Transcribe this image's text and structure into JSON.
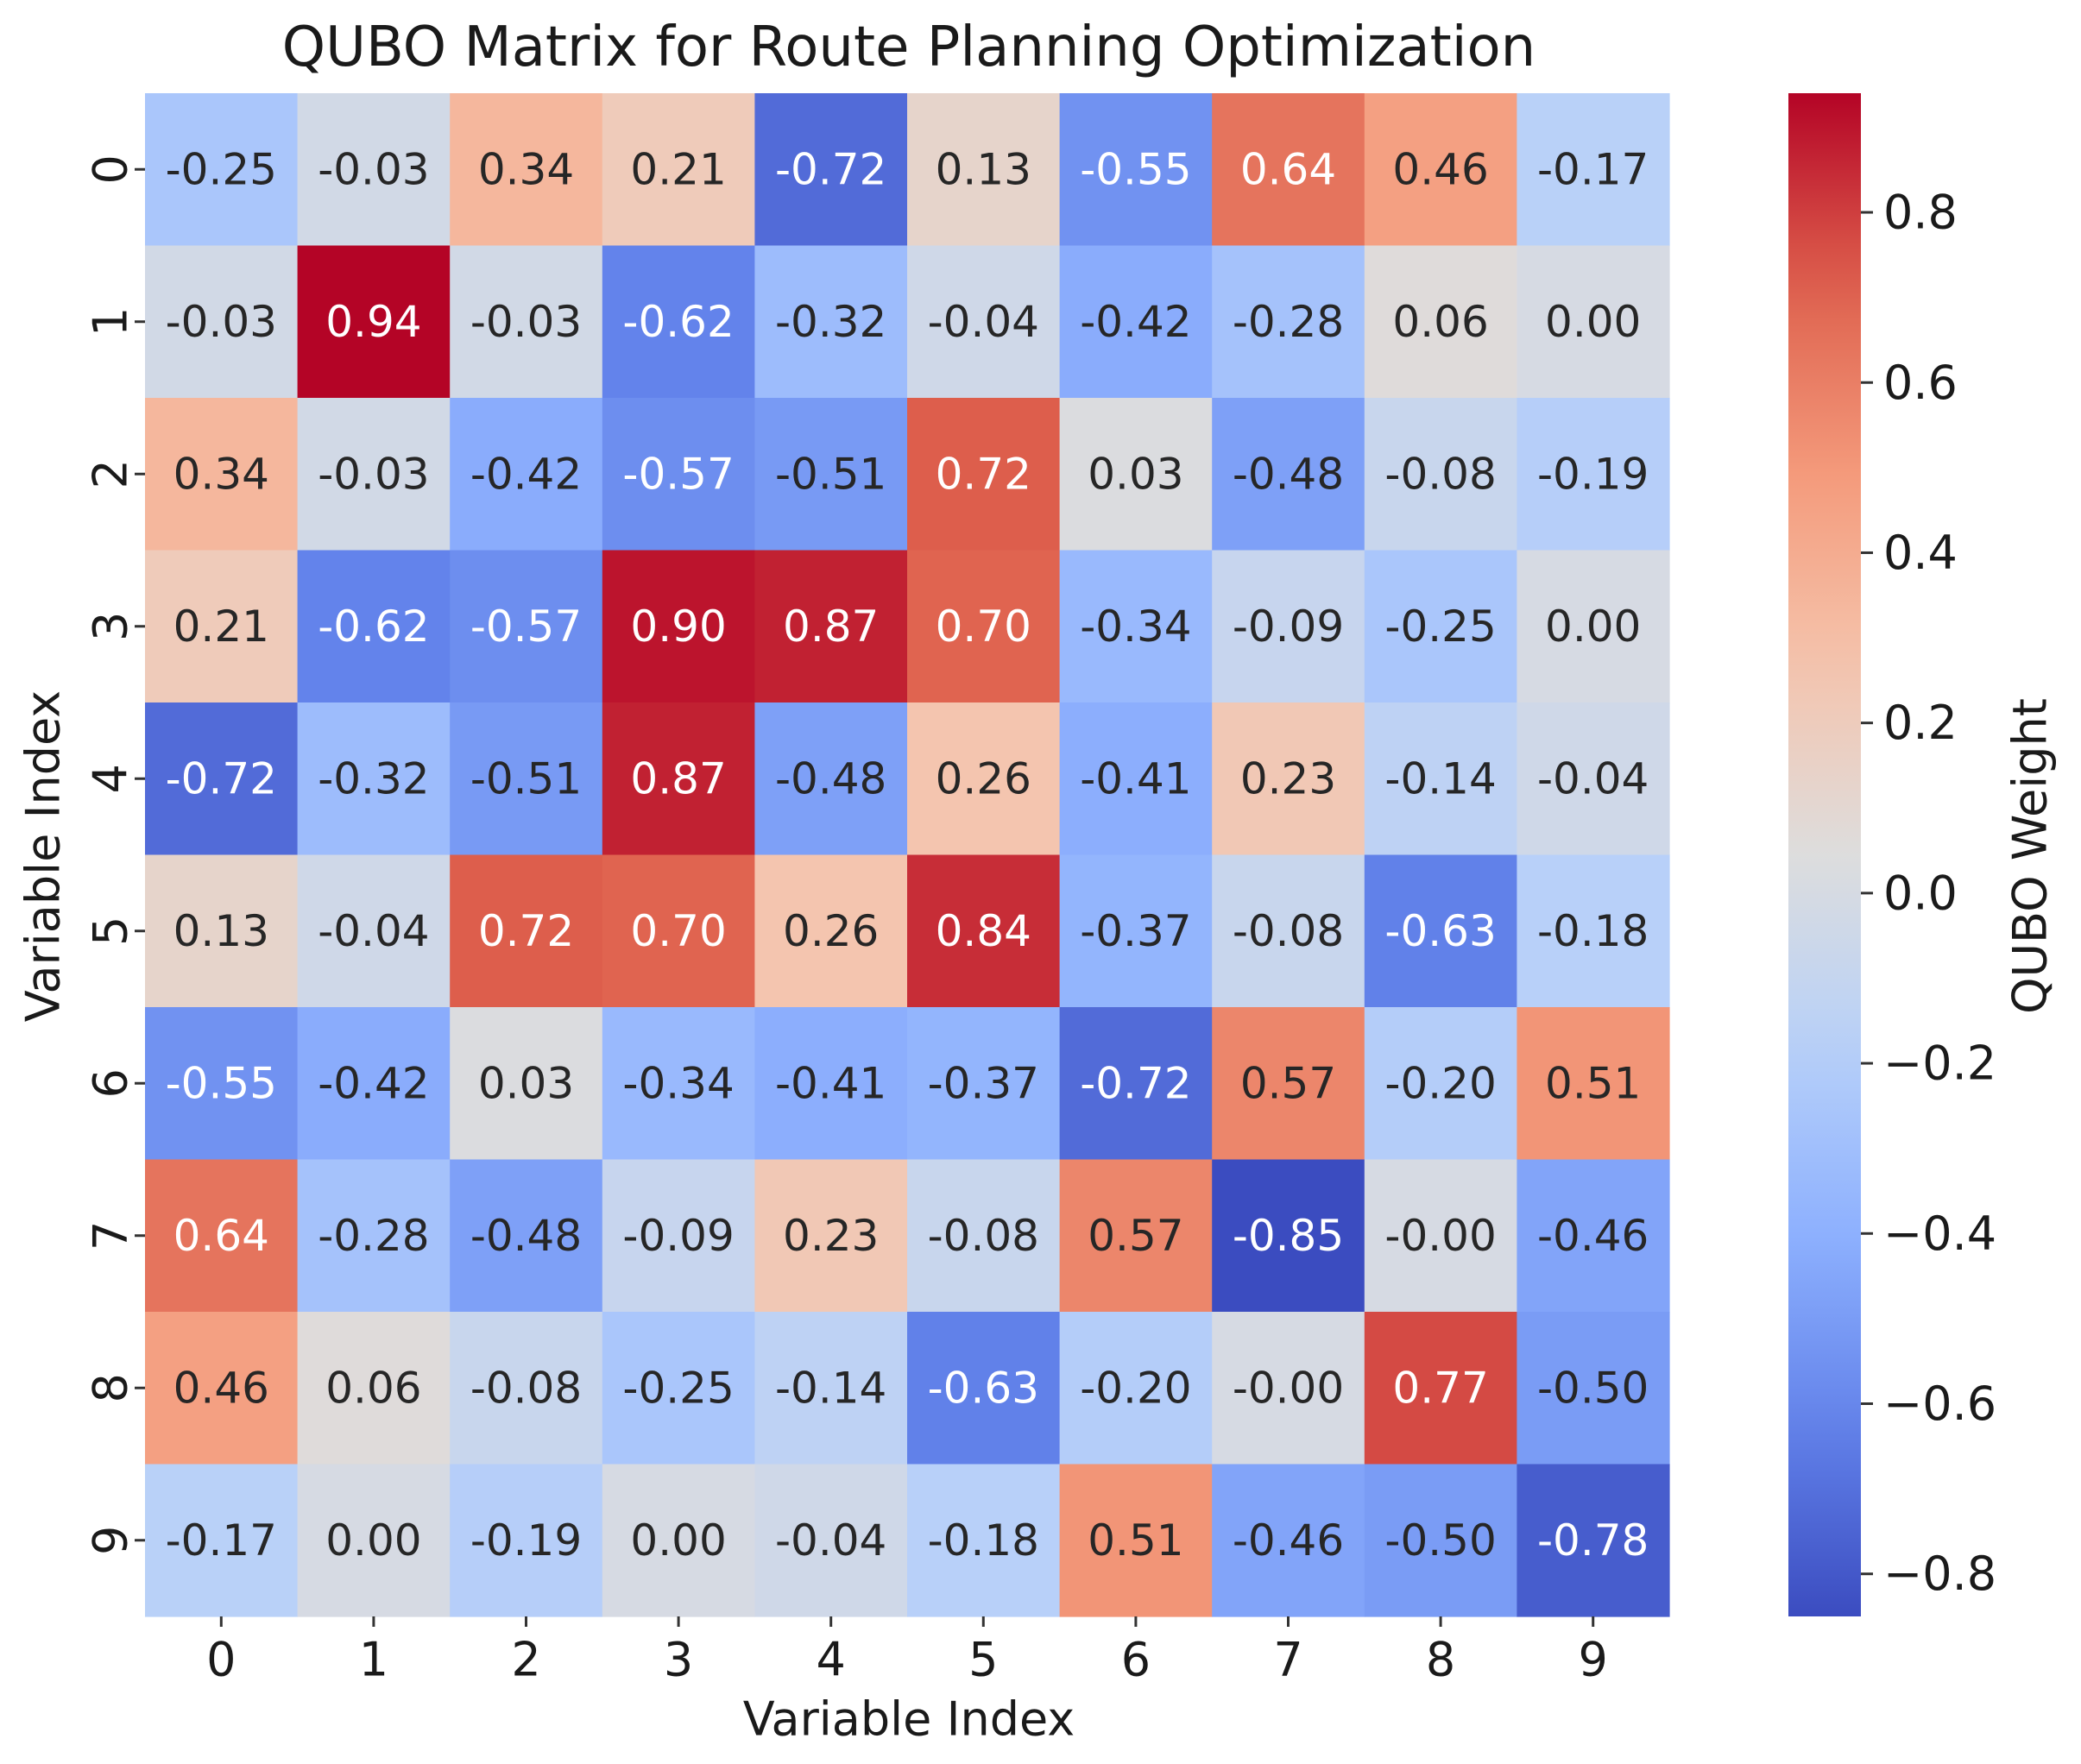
{
  "chart_data": {
    "type": "heatmap",
    "title": "QUBO Matrix for Route Planning Optimization",
    "xlabel": "Variable Index",
    "ylabel": "Variable Index",
    "x_categories": [
      "0",
      "1",
      "2",
      "3",
      "4",
      "5",
      "6",
      "7",
      "8",
      "9"
    ],
    "y_categories": [
      "0",
      "1",
      "2",
      "3",
      "4",
      "5",
      "6",
      "7",
      "8",
      "9"
    ],
    "values": [
      [
        -0.25,
        -0.03,
        0.34,
        0.21,
        -0.72,
        0.13,
        -0.55,
        0.64,
        0.46,
        -0.17
      ],
      [
        -0.03,
        0.94,
        -0.03,
        -0.62,
        -0.32,
        -0.04,
        -0.42,
        -0.28,
        0.06,
        0.0
      ],
      [
        0.34,
        -0.03,
        -0.42,
        -0.57,
        -0.51,
        0.72,
        0.03,
        -0.48,
        -0.08,
        -0.19
      ],
      [
        0.21,
        -0.62,
        -0.57,
        0.9,
        0.87,
        0.7,
        -0.34,
        -0.09,
        -0.25,
        0.0
      ],
      [
        -0.72,
        -0.32,
        -0.51,
        0.87,
        -0.48,
        0.26,
        -0.41,
        0.23,
        -0.14,
        -0.04
      ],
      [
        0.13,
        -0.04,
        0.72,
        0.7,
        0.26,
        0.84,
        -0.37,
        -0.08,
        -0.63,
        -0.18
      ],
      [
        -0.55,
        -0.42,
        0.03,
        -0.34,
        -0.41,
        -0.37,
        -0.72,
        0.57,
        -0.2,
        0.51
      ],
      [
        0.64,
        -0.28,
        -0.48,
        -0.09,
        0.23,
        -0.08,
        0.57,
        -0.85,
        -0.0,
        -0.46
      ],
      [
        0.46,
        0.06,
        -0.08,
        -0.25,
        -0.14,
        -0.63,
        -0.2,
        -0.0,
        0.77,
        -0.5
      ],
      [
        -0.17,
        0.0,
        -0.19,
        0.0,
        -0.04,
        -0.18,
        0.51,
        -0.46,
        -0.5,
        -0.78
      ]
    ],
    "cell_labels": [
      [
        "-0.25",
        "-0.03",
        "0.34",
        "0.21",
        "-0.72",
        "0.13",
        "-0.55",
        "0.64",
        "0.46",
        "-0.17"
      ],
      [
        "-0.03",
        "0.94",
        "-0.03",
        "-0.62",
        "-0.32",
        "-0.04",
        "-0.42",
        "-0.28",
        "0.06",
        "0.00"
      ],
      [
        "0.34",
        "-0.03",
        "-0.42",
        "-0.57",
        "-0.51",
        "0.72",
        "0.03",
        "-0.48",
        "-0.08",
        "-0.19"
      ],
      [
        "0.21",
        "-0.62",
        "-0.57",
        "0.90",
        "0.87",
        "0.70",
        "-0.34",
        "-0.09",
        "-0.25",
        "0.00"
      ],
      [
        "-0.72",
        "-0.32",
        "-0.51",
        "0.87",
        "-0.48",
        "0.26",
        "-0.41",
        "0.23",
        "-0.14",
        "-0.04"
      ],
      [
        "0.13",
        "-0.04",
        "0.72",
        "0.70",
        "0.26",
        "0.84",
        "-0.37",
        "-0.08",
        "-0.63",
        "-0.18"
      ],
      [
        "-0.55",
        "-0.42",
        "0.03",
        "-0.34",
        "-0.41",
        "-0.37",
        "-0.72",
        "0.57",
        "-0.20",
        "0.51"
      ],
      [
        "0.64",
        "-0.28",
        "-0.48",
        "-0.09",
        "0.23",
        "-0.08",
        "0.57",
        "-0.85",
        "-0.00",
        "-0.46"
      ],
      [
        "0.46",
        "0.06",
        "-0.08",
        "-0.25",
        "-0.14",
        "-0.63",
        "-0.20",
        "-0.00",
        "0.77",
        "-0.50"
      ],
      [
        "-0.17",
        "0.00",
        "-0.19",
        "0.00",
        "-0.04",
        "-0.18",
        "0.51",
        "-0.46",
        "-0.50",
        "-0.78"
      ]
    ],
    "colormap": "coolwarm",
    "vmin": -0.85,
    "vmax": 0.94,
    "colorbar": {
      "label": "QUBO Weight",
      "ticks": [
        0.8,
        0.6,
        0.4,
        0.2,
        0.0,
        -0.2,
        -0.4,
        -0.6,
        -0.8
      ],
      "tick_labels": [
        "0.8",
        "0.6",
        "0.4",
        "0.2",
        "0.0",
        "−0.2",
        "−0.4",
        "−0.6",
        "−0.8"
      ]
    },
    "grid": false
  }
}
